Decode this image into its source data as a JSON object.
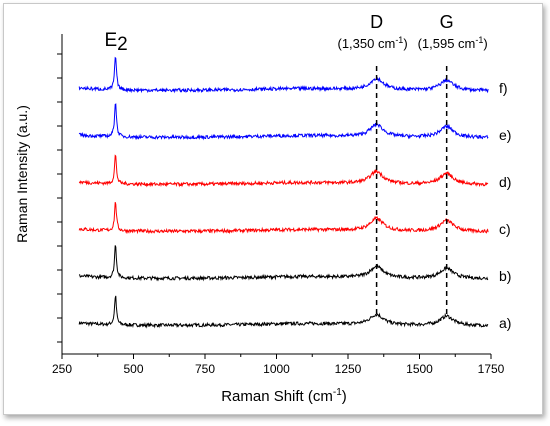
{
  "chart_data": {
    "type": "line",
    "xlabel": "Raman Shift (cm",
    "xlabel_sup": "-1",
    "xlabel_tail": ")",
    "ylabel": "Raman Intensity (a.u.)",
    "xlim": [
      250,
      1750
    ],
    "x_ticks": [
      "250",
      "500",
      "750",
      "1000",
      "1250",
      "1500",
      "1750"
    ],
    "x_tick_values": [
      250,
      500,
      750,
      1000,
      1250,
      1500,
      1750
    ],
    "series": [
      {
        "label": "a)",
        "color": "#000000",
        "offset": 0.0,
        "e2": 0.62,
        "peak": 0.22
      },
      {
        "label": "b)",
        "color": "#000000",
        "offset": 1.0,
        "e2": 0.72,
        "peak": 0.24
      },
      {
        "label": "c)",
        "color": "#ff0000",
        "offset": 2.0,
        "e2": 0.62,
        "peak": 0.26
      },
      {
        "label": "d)",
        "color": "#ff0000",
        "offset": 3.0,
        "e2": 0.62,
        "peak": 0.26
      },
      {
        "label": "e)",
        "color": "#0000ff",
        "offset": 4.0,
        "e2": 0.75,
        "peak": 0.26
      },
      {
        "label": "f)",
        "color": "#0000ff",
        "offset": 5.0,
        "e2": 0.72,
        "peak": 0.24
      }
    ],
    "annotations": {
      "e2_label": "E",
      "e2_sub": "2",
      "e2_x": 437,
      "d_label": "D",
      "d_sub": "(1,350 cm",
      "d_sup": "-1",
      "d_tail": ")",
      "d_x": 1350,
      "g_label": "G",
      "g_sub": "(1,595 cm",
      "g_sup": "-1",
      "g_tail": ")",
      "g_x": 1595
    }
  }
}
